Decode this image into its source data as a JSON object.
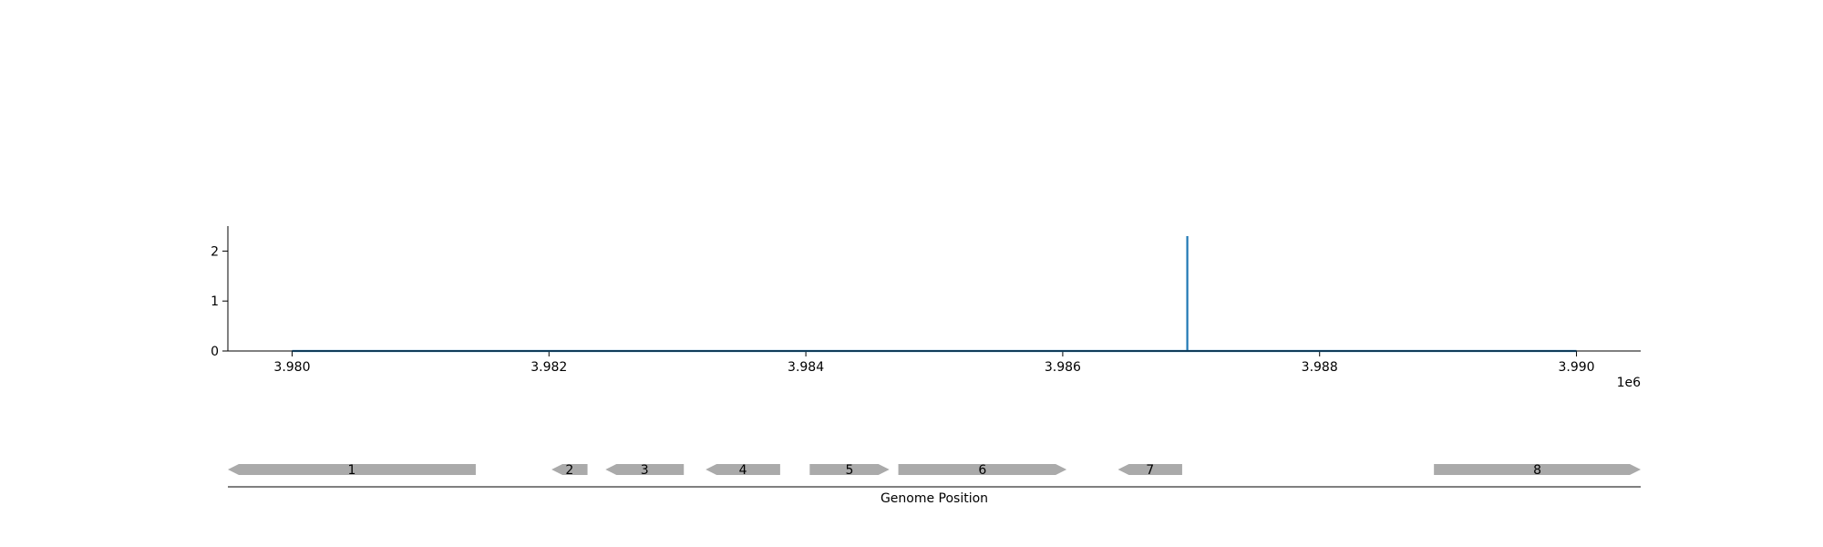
{
  "chart_data": [
    {
      "type": "line",
      "title": "",
      "xlabel": "",
      "ylabel": "",
      "x_offset_label": "1e6",
      "xlim": [
        3979500,
        3990500
      ],
      "ylim": [
        0,
        2.5
      ],
      "x_ticks": [
        3980000,
        3982000,
        3984000,
        3986000,
        3988000,
        3990000
      ],
      "x_tick_labels": [
        "3.980",
        "3.982",
        "3.984",
        "3.986",
        "3.988",
        "3.990"
      ],
      "y_ticks": [
        0,
        1,
        2
      ],
      "y_tick_labels": [
        "0",
        "1",
        "2"
      ],
      "grid": false,
      "line_color": "#1f77b4",
      "series": [
        {
          "x": [
            3980000,
            3986970,
            3986970,
            3986970,
            3986970,
            3990000
          ],
          "y": [
            0,
            0,
            2.3,
            2.3,
            0,
            0
          ]
        }
      ]
    },
    {
      "type": "gene-track",
      "xlabel": "Genome Position",
      "xlim": [
        3979500,
        3990500
      ],
      "feature_color": "#aaaaaa",
      "features": [
        {
          "label": "1",
          "start": 3979500,
          "end": 3981430,
          "strand": -1
        },
        {
          "label": "2",
          "start": 3982020,
          "end": 3982300,
          "strand": -1
        },
        {
          "label": "3",
          "start": 3982440,
          "end": 3983050,
          "strand": -1
        },
        {
          "label": "4",
          "start": 3983220,
          "end": 3983800,
          "strand": -1
        },
        {
          "label": "5",
          "start": 3984030,
          "end": 3984650,
          "strand": 1
        },
        {
          "label": "6",
          "start": 3984720,
          "end": 3986030,
          "strand": 1
        },
        {
          "label": "7",
          "start": 3986430,
          "end": 3986930,
          "strand": -1
        },
        {
          "label": "8",
          "start": 3988890,
          "end": 3990500,
          "strand": 1
        }
      ]
    }
  ]
}
